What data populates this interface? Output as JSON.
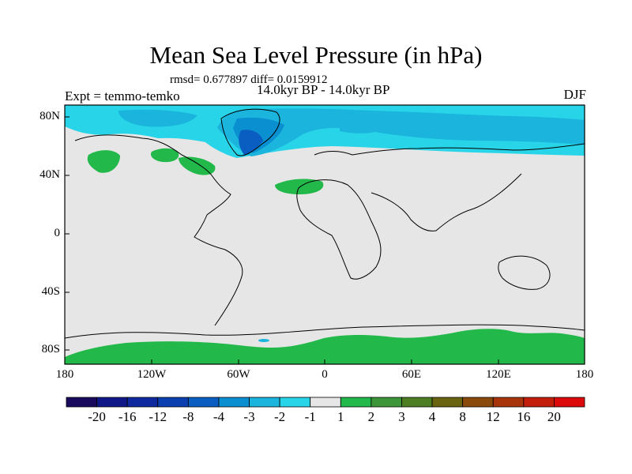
{
  "title": "Mean Sea Level Pressure (in hPa)",
  "stats": "rmsd= 0.677897 diff= 0.0159912",
  "subtitle": "14.0kyr BP - 14.0kyr BP",
  "expt": "Expt = temmo-temko",
  "season": "DJF",
  "lat_labels": [
    "80N",
    "40N",
    "0",
    "40S",
    "80S"
  ],
  "lon_labels": [
    "180",
    "120W",
    "60W",
    "0",
    "60E",
    "120E",
    "180"
  ],
  "colorbar": {
    "colors": [
      "#1a0a5e",
      "#101888",
      "#0e2a9e",
      "#0a3fb0",
      "#0a5ec2",
      "#0a8fd0",
      "#1ab4dc",
      "#28d4e8",
      "#e6e6e6",
      "#22b84a",
      "#3a9638",
      "#4e7e22",
      "#6a6410",
      "#8a4a0a",
      "#a8340a",
      "#c21e0a",
      "#dc0a0a"
    ],
    "labels": [
      "-20",
      "-16",
      "-12",
      "-8",
      "-4",
      "-3",
      "-2",
      "-1",
      "1",
      "2",
      "3",
      "4",
      "8",
      "12",
      "16",
      "20"
    ]
  }
}
